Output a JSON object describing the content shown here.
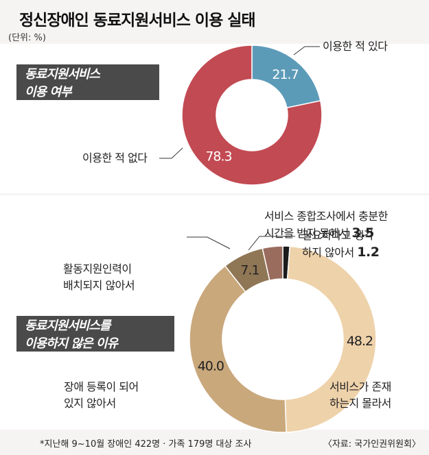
{
  "title": "정신장애인 동료지원서비스 이용 실태",
  "unit": "(단위: %)",
  "footnote": "*지난해 9~10월 장애인 422명 · 가족 179명 대상 조사",
  "source": "〈자료: 국가인권위원회〉",
  "chart_data": [
    {
      "type": "pie",
      "title": "동료지원서비스 이용 여부",
      "title_lines": [
        "동료지원서비스",
        "이용 여부"
      ],
      "categories": [
        "이용한 적 있다",
        "이용한 적 없다"
      ],
      "values": [
        21.7,
        78.3
      ],
      "value_labels": [
        "21.7",
        "78.3"
      ],
      "colors": [
        "#5c9bb8",
        "#c24a53"
      ]
    },
    {
      "type": "pie",
      "title": "동료지원서비스를 이용하지 않은 이유",
      "title_lines": [
        "동료지원서비스를",
        "이용하지 않은 이유"
      ],
      "categories": [
        "필요하다고 생각 하지 않아서",
        "서비스가 존재 하는지 몰라서",
        "장애 등록이 되어 있지 않아서",
        "활동지원인력이 배치되지 않아서",
        "서비스 종합조사에서 충분한 시간을 받지 못해서"
      ],
      "values": [
        1.2,
        48.2,
        40.0,
        7.1,
        3.5
      ],
      "value_labels": [
        "1.2",
        "48.2",
        "40.0",
        "7.1",
        "3.5"
      ],
      "colors": [
        "#1c1c1c",
        "#eed2aa",
        "#c9a87c",
        "#8f7655",
        "#9a6c5e"
      ]
    }
  ],
  "labels": {
    "c1_yes": "이용한 적 있다",
    "c1_no": "이용한 적 없다",
    "c2_need_1": "필요하다고 생각",
    "c2_need_2": "하지 않아서 ",
    "c2_exist_1": "서비스가 존재",
    "c2_exist_2": "하는지 몰라서",
    "c2_reg_1": "장애 등록이 되어",
    "c2_reg_2": "있지 않아서",
    "c2_staff_1": "활동지원인력이",
    "c2_staff_2": "배치되지 않아서",
    "c2_time_1": "서비스 종합조사에서 충분한",
    "c2_time_2": "시간을 받지 못해서 "
  }
}
